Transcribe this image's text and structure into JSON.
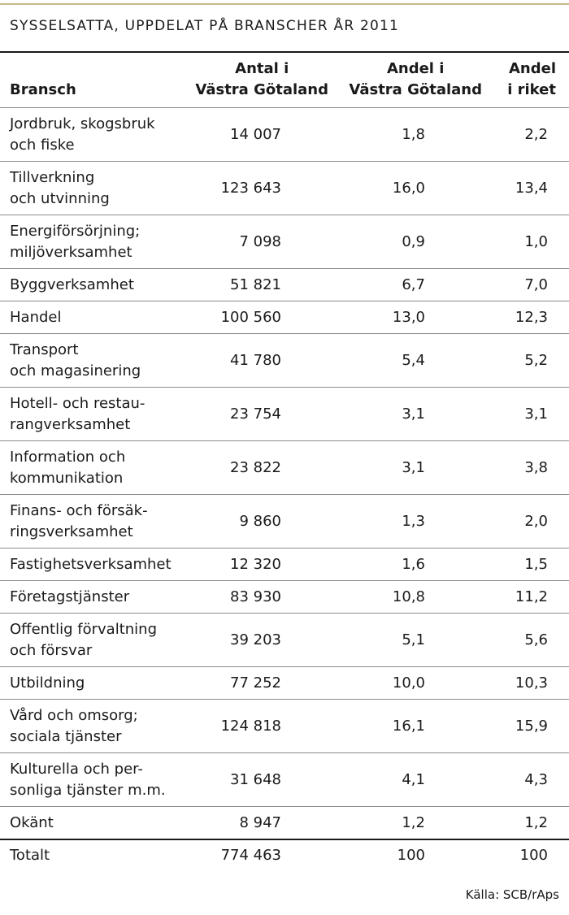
{
  "title": "SYSSELSATTA, UPPDELAT PÅ BRANSCHER ÅR 2011",
  "headers": {
    "bransch": [
      "Bransch"
    ],
    "antal": [
      "Antal i",
      "Västra Götaland"
    ],
    "andel_vg": [
      "Andel i",
      "Västra Götaland"
    ],
    "andel_riket": [
      "Andel",
      "i riket"
    ]
  },
  "rows": [
    {
      "name": [
        "Jordbruk, skogsbruk",
        "och fiske"
      ],
      "antal": "14 007",
      "andel_vg": "1,8",
      "andel_riket": "2,2"
    },
    {
      "name": [
        "Tillverkning",
        "och utvinning"
      ],
      "antal": "123 643",
      "andel_vg": "16,0",
      "andel_riket": "13,4"
    },
    {
      "name": [
        "Energiförsörjning;",
        "miljöverksamhet"
      ],
      "antal": "7 098",
      "andel_vg": "0,9",
      "andel_riket": "1,0"
    },
    {
      "name": [
        "Byggverksamhet"
      ],
      "antal": "51 821",
      "andel_vg": "6,7",
      "andel_riket": "7,0"
    },
    {
      "name": [
        "Handel"
      ],
      "antal": "100 560",
      "andel_vg": "13,0",
      "andel_riket": "12,3"
    },
    {
      "name": [
        "Transport",
        "och magasinering"
      ],
      "antal": "41 780",
      "andel_vg": "5,4",
      "andel_riket": "5,2"
    },
    {
      "name": [
        "Hotell- och restau-",
        "rangverksamhet"
      ],
      "antal": "23 754",
      "andel_vg": "3,1",
      "andel_riket": "3,1"
    },
    {
      "name": [
        "Information och",
        "kommunikation"
      ],
      "antal": "23 822",
      "andel_vg": "3,1",
      "andel_riket": "3,8"
    },
    {
      "name": [
        "Finans- och försäk-",
        "ringsverksamhet"
      ],
      "antal": "9 860",
      "andel_vg": "1,3",
      "andel_riket": "2,0"
    },
    {
      "name": [
        "Fastighetsverksamhet"
      ],
      "antal": "12 320",
      "andel_vg": "1,6",
      "andel_riket": "1,5"
    },
    {
      "name": [
        "Företagstjänster"
      ],
      "antal": "83 930",
      "andel_vg": "10,8",
      "andel_riket": "11,2"
    },
    {
      "name": [
        "Offentlig förvaltning",
        "och försvar"
      ],
      "antal": "39 203",
      "andel_vg": "5,1",
      "andel_riket": "5,6"
    },
    {
      "name": [
        "Utbildning"
      ],
      "antal": "77 252",
      "andel_vg": "10,0",
      "andel_riket": "10,3"
    },
    {
      "name": [
        "Vård och omsorg;",
        "sociala tjänster"
      ],
      "antal": "124 818",
      "andel_vg": "16,1",
      "andel_riket": "15,9"
    },
    {
      "name": [
        "Kulturella och per-",
        "sonliga tjänster m.m."
      ],
      "antal": "31 648",
      "andel_vg": "4,1",
      "andel_riket": "4,3"
    },
    {
      "name": [
        "Okänt"
      ],
      "antal": "8 947",
      "andel_vg": "1,2",
      "andel_riket": "1,2"
    }
  ],
  "total": {
    "name": [
      "Totalt"
    ],
    "antal": "774 463",
    "andel_vg": "100",
    "andel_riket": "100"
  },
  "source": "Källa: SCB/rAps",
  "colors": {
    "accent_rule": "#c8b989",
    "text": "#1a1a1a",
    "divider": "#8c8c8c"
  }
}
